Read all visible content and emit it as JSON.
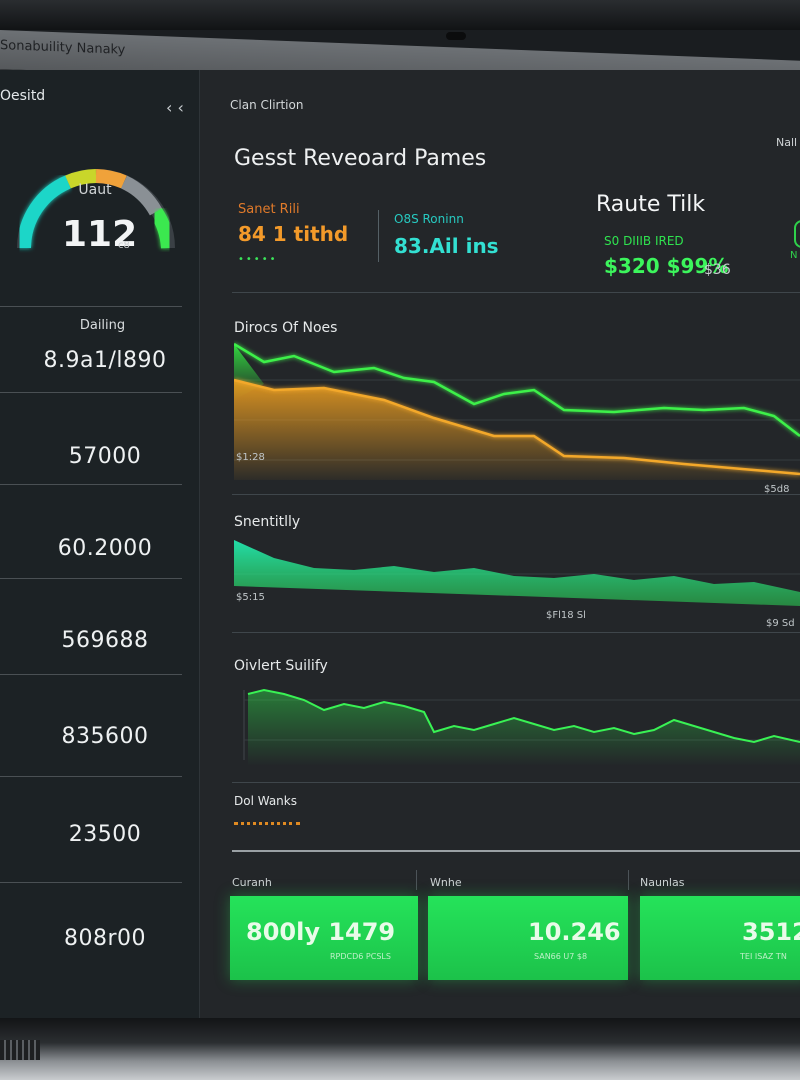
{
  "window": {
    "title": "Sonabuility Nanaky"
  },
  "sidebar": {
    "title": "Oesitd",
    "collapse_icon": "chevron-double-left-icon",
    "gauge": {
      "label": "Uaut",
      "value": "112",
      "unit": "c8",
      "level": 0.82,
      "colors": [
        "#1fd6c8",
        "#c9d62a",
        "#f0a23a",
        "#3be84f"
      ]
    },
    "sub_label": "Dailing",
    "metrics": [
      "8.9a1/l890",
      "57000",
      "60.2000",
      "569688",
      "835600",
      "23500",
      "808r00"
    ]
  },
  "main": {
    "header": "Clan Clirtion",
    "corner_label": "Nall",
    "hero_title": "Gesst Reveoard Pames",
    "kpi_a": {
      "label": "Sanet Rili",
      "value": "84 1 tithd",
      "dots": "•••••"
    },
    "kpi_b": {
      "label": "O8S Roninn",
      "value": "83.Ail ins"
    },
    "route_title": "Raute Tilk",
    "kpi_c": {
      "label": "S0 DIIIB IRED",
      "value": "$320 $99%",
      "side": "$36"
    },
    "edge_tag": "N"
  },
  "charts": [
    {
      "title": "Dirocs Of Noes",
      "axis_left": "$1:28",
      "axis_right": "$5d8",
      "colors": [
        "#34e842",
        "#f0a020"
      ]
    },
    {
      "title": "Snentitlly",
      "axis_left": "$5:15",
      "axis_mid": "$Fl18 Sl",
      "axis_right": "$9 Sd",
      "colors": [
        "#22e6b0"
      ]
    },
    {
      "title": "Oivlert Suilify",
      "colors": [
        "#2fe24b"
      ]
    }
  ],
  "section_label": "Dol Wanks",
  "summary": {
    "labels": [
      "Curanh",
      "Wnhe",
      "Naunlas"
    ],
    "cards": [
      {
        "big": "800ly  1479",
        "small": "RPDCD6 PCSLS"
      },
      {
        "big": "10.246",
        "small": "SAN66 U7 $8"
      },
      {
        "big": "3512",
        "small": "TEI ISAZ TN"
      }
    ]
  }
}
